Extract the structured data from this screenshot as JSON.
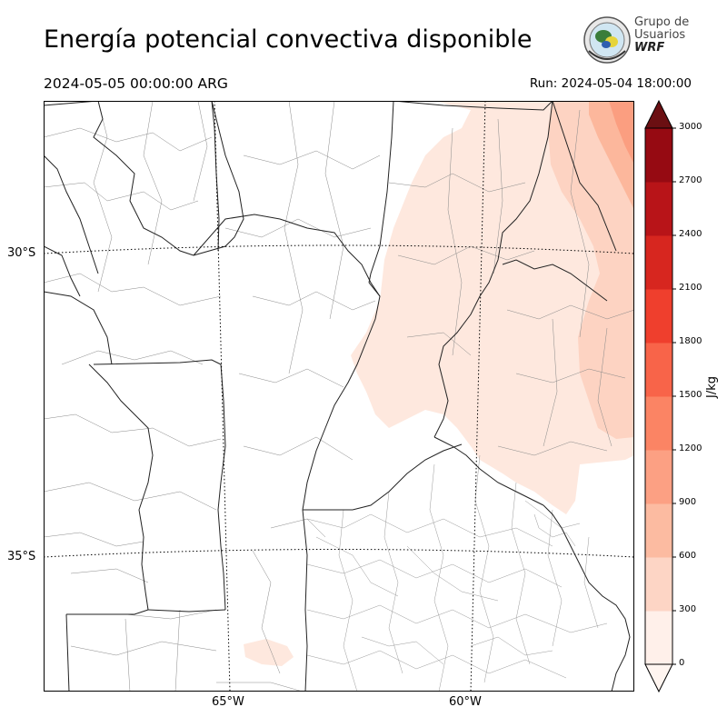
{
  "header": {
    "title": "Energía potencial convectiva disponible",
    "valid_time": "2024-05-05 00:00:00 ARG",
    "run_time": "Run: 2024-05-04 18:00:00"
  },
  "logo": {
    "line1": "Grupo de",
    "line2": "Usuarios",
    "line3": "WRF"
  },
  "map": {
    "latitude_labels": [
      "30°S",
      "35°S"
    ],
    "longitude_labels": [
      "65°W",
      "60°W"
    ],
    "field_color_low": "#fee5d9",
    "field_color_mid": "#fcbba1",
    "field_color_high": "#fb6a4a"
  },
  "colorbar": {
    "unit_label": "J/kg",
    "ticks": [
      "0",
      "300",
      "600",
      "900",
      "1200",
      "1500",
      "1800",
      "2100",
      "2400",
      "2700",
      "3000"
    ],
    "colors": [
      "#fff0ea",
      "#fdd5c5",
      "#fcbba1",
      "#fca083",
      "#fb8464",
      "#f86449",
      "#ef3f2d",
      "#d7261f",
      "#b81418",
      "#960a12",
      "#6b0f12"
    ]
  }
}
